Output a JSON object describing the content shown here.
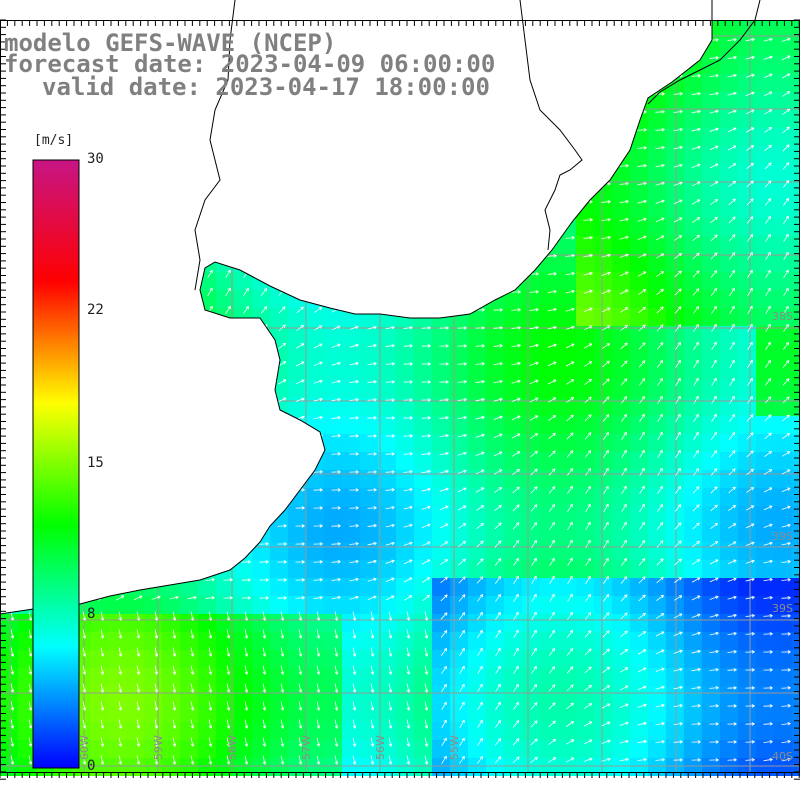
{
  "title": {
    "line1": "modelo GEFS-WAVE (NCEP)",
    "line2": "forecast date: 2023-04-09 06:00:00",
    "line3": "valid date: 2023-04-17 18:00:00"
  },
  "colorbar": {
    "unit": "[m/s]",
    "ticks": [
      "30",
      "22",
      "15",
      "8",
      "0"
    ],
    "min": 0,
    "max": 30,
    "stops": [
      "#0000ff",
      "#00ffff",
      "#00ff00",
      "#ffff00",
      "#ff0000",
      "#c71585"
    ]
  },
  "map": {
    "longitude_labels": [
      "60W",
      "59W",
      "58W",
      "57W",
      "56W",
      "55W"
    ],
    "latitude_labels": [
      "38S",
      "39S",
      "39S",
      "40S"
    ],
    "land_color": "#ffffff",
    "coast_color": "#000000",
    "grid_color": "#999999"
  }
}
